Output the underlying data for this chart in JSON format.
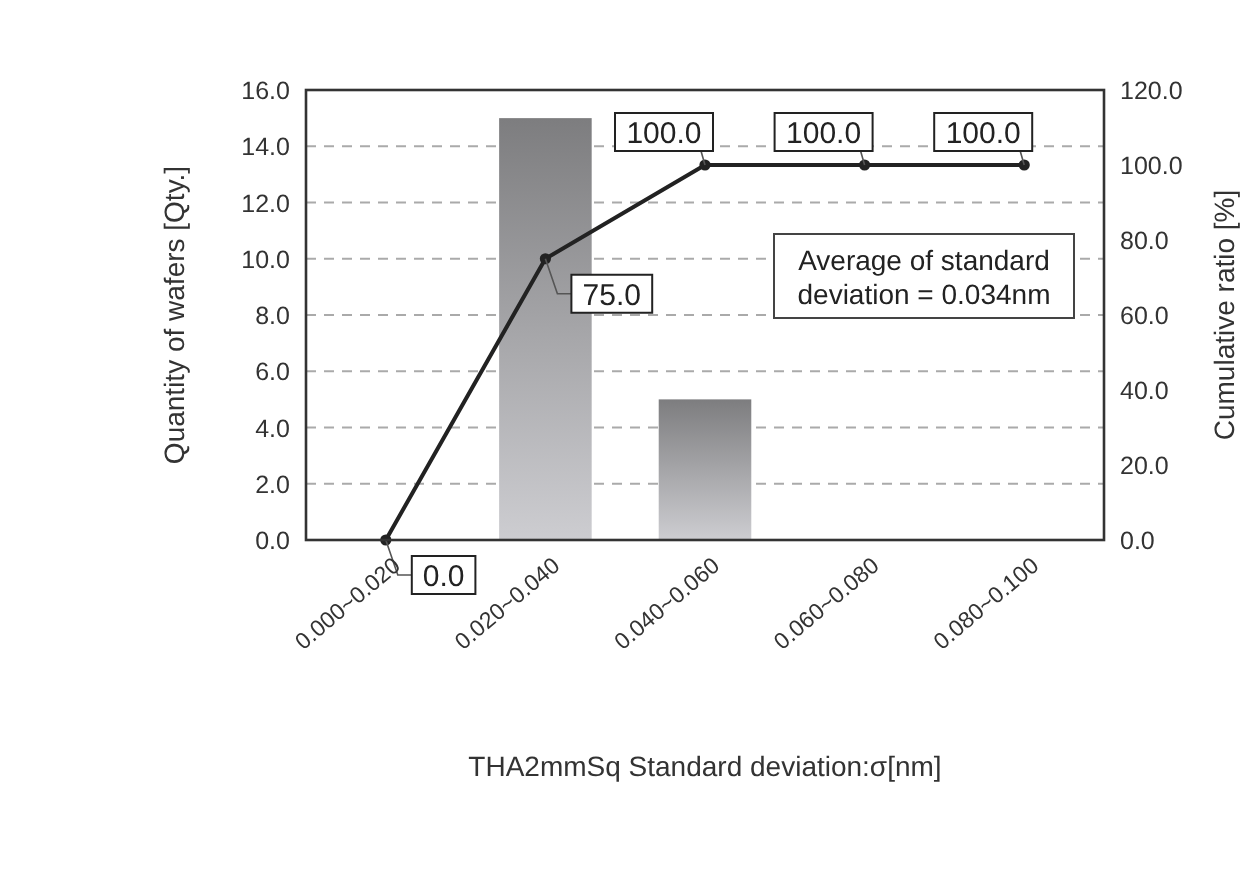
{
  "chart_data": {
    "type": "bar",
    "xlabel": "THA2mmSq Standard deviation:σ[nm]",
    "ylabel": "Quantity of wafers [Qty.]",
    "y2label": "Cumulative ratio [%]",
    "categories": [
      "0.000~0.020",
      "0.020~0.040",
      "0.040~0.060",
      "0.060~0.080",
      "0.080~0.100"
    ],
    "series": [
      {
        "color": "#a0a0a3",
        "values": [
          0,
          15,
          5,
          0,
          0
        ]
      },
      {
        "type": "line",
        "axis": "y2",
        "color": "#222222",
        "marker": "circle",
        "line_style": "solid",
        "values": [
          0,
          75,
          100,
          100,
          100
        ],
        "value_labels": [
          "0.0",
          "75.0",
          "100.0",
          "100.0",
          "100.0"
        ]
      }
    ],
    "ylim": [
      0,
      16
    ],
    "yticks": [
      {
        "value": 0,
        "label": "0.0"
      },
      {
        "value": 2,
        "label": "2.0"
      },
      {
        "value": 4,
        "label": "4.0"
      },
      {
        "value": 6,
        "label": "6.0"
      },
      {
        "value": 8,
        "label": "8.0"
      },
      {
        "value": 10,
        "label": "10.0"
      },
      {
        "value": 12,
        "label": "12.0"
      },
      {
        "value": 14,
        "label": "14.0"
      },
      {
        "value": 16,
        "label": "16.0"
      }
    ],
    "y2lim": [
      0,
      120
    ],
    "y2ticks": [
      {
        "value": 0,
        "label": "0.0"
      },
      {
        "value": 20,
        "label": "20.0"
      },
      {
        "value": 40,
        "label": "40.0"
      },
      {
        "value": 60,
        "label": "60.0"
      },
      {
        "value": 80,
        "label": "80.0"
      },
      {
        "value": 100,
        "label": "100.0"
      },
      {
        "value": 120,
        "label": "120.0"
      }
    ],
    "grid": "y",
    "annotations": [
      "Average of standard\ndeviation = 0.034nm"
    ]
  }
}
